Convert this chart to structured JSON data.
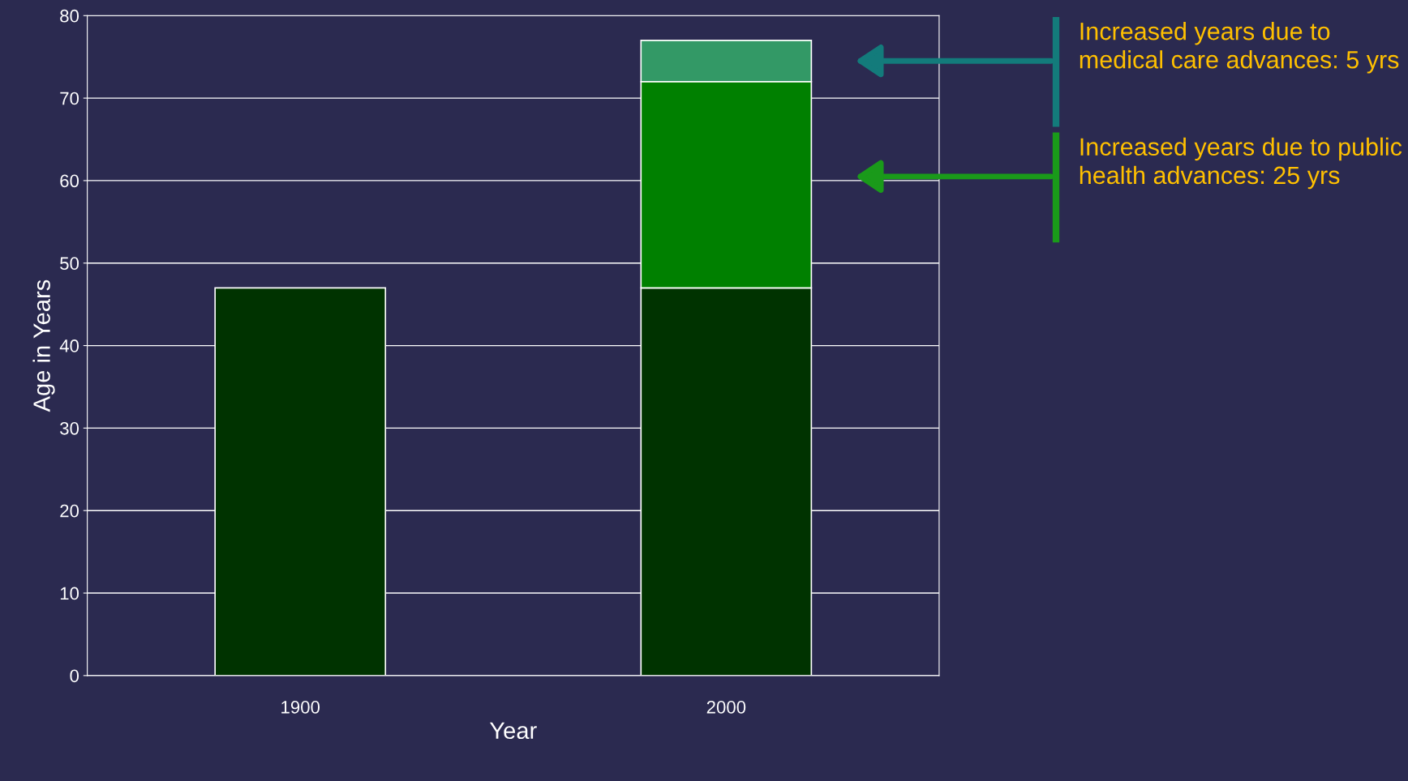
{
  "chart_data": {
    "type": "bar",
    "stacked": true,
    "xlabel": "Year",
    "ylabel": "Age in Years",
    "categories": [
      "1900",
      "2000"
    ],
    "series": [
      {
        "color": "#003300",
        "values": [
          47,
          47
        ]
      },
      {
        "color": "#008000",
        "values": [
          null,
          25
        ]
      },
      {
        "color": "#339966",
        "values": [
          null,
          5
        ]
      }
    ],
    "ylim": [
      0,
      80
    ],
    "yticks": [
      0,
      10,
      20,
      30,
      40,
      50,
      60,
      70,
      80
    ],
    "grid": "y",
    "legend": false,
    "annotations": [
      "Increased years due to medical care advances: 5 yrs",
      "Increased years due to public health advances: 25 yrs"
    ]
  }
}
